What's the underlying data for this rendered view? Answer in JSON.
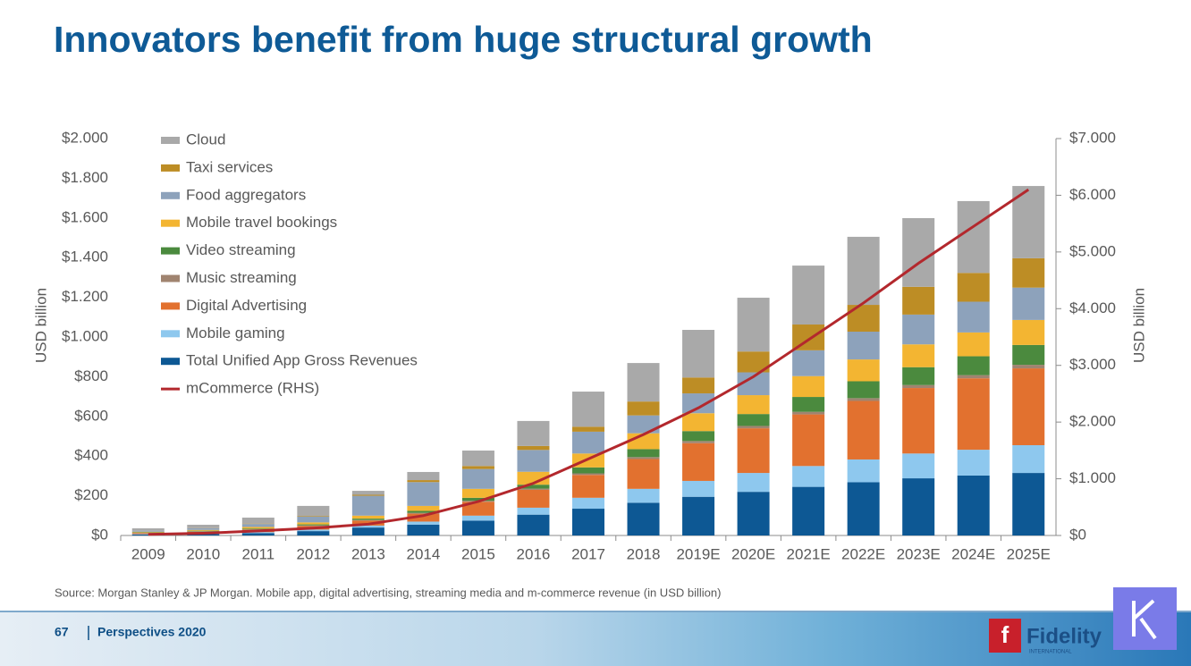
{
  "chart_data": {
    "type": "stacked_bar_line",
    "title": "Innovators benefit from huge structural growth",
    "ylabel": "USD billion",
    "y2label": "USD billion",
    "source": "Source: Morgan Stanley & JP Morgan. Mobile app, digital advertising, streaming media and m-commerce revenue (in USD billion)",
    "categories": [
      "2009",
      "2010",
      "2011",
      "2012",
      "2013",
      "2014",
      "2015",
      "2016",
      "2017",
      "2018",
      "2019E",
      "2020E",
      "2021E",
      "2022E",
      "2023E",
      "2024E",
      "2025E"
    ],
    "ylim": [
      0,
      2000
    ],
    "yticks": [
      {
        "value": 0,
        "label": "$0"
      },
      {
        "value": 200,
        "label": "$200"
      },
      {
        "value": 400,
        "label": "$400"
      },
      {
        "value": 600,
        "label": "$600"
      },
      {
        "value": 800,
        "label": "$800"
      },
      {
        "value": 1000,
        "label": "$1.000"
      },
      {
        "value": 1200,
        "label": "$1.200"
      },
      {
        "value": 1400,
        "label": "$1.400"
      },
      {
        "value": 1600,
        "label": "$1.600"
      },
      {
        "value": 1800,
        "label": "$1.800"
      },
      {
        "value": 2000,
        "label": "$2.000"
      }
    ],
    "y2lim": [
      0,
      7000
    ],
    "y2ticks": [
      {
        "value": 0,
        "label": "$0"
      },
      {
        "value": 1000,
        "label": "$1.000"
      },
      {
        "value": 2000,
        "label": "$2.000"
      },
      {
        "value": 3000,
        "label": "$3.000"
      },
      {
        "value": 4000,
        "label": "$4.000"
      },
      {
        "value": 5000,
        "label": "$5.000"
      },
      {
        "value": 6000,
        "label": "$6.000"
      },
      {
        "value": 7000,
        "label": "$7.000"
      }
    ],
    "series": [
      {
        "name": "Total Unified App Gross Revenues",
        "color": "#0d5894",
        "values": [
          5,
          8,
          12,
          22,
          40,
          55,
          75,
          105,
          135,
          165,
          195,
          220,
          245,
          268,
          288,
          302,
          315
        ]
      },
      {
        "name": "Mobile gaming",
        "color": "#8ec8ee",
        "values": [
          2,
          3,
          5,
          8,
          10,
          15,
          25,
          35,
          55,
          70,
          80,
          95,
          105,
          115,
          125,
          130,
          140
        ]
      },
      {
        "name": "Digital Advertising",
        "color": "#e2712f",
        "values": [
          5,
          8,
          12,
          18,
          25,
          40,
          70,
          90,
          115,
          150,
          190,
          225,
          260,
          295,
          330,
          360,
          387
        ]
      },
      {
        "name": "Music streaming",
        "color": "#a08470",
        "values": [
          2,
          2,
          2,
          3,
          3,
          4,
          5,
          6,
          8,
          10,
          11,
          12,
          13,
          14,
          15,
          16,
          18
        ]
      },
      {
        "name": "Video streaming",
        "color": "#4b8a3e",
        "values": [
          2,
          3,
          4,
          5,
          7,
          10,
          15,
          20,
          30,
          40,
          50,
          60,
          75,
          85,
          90,
          95,
          100
        ]
      },
      {
        "name": "Mobile travel bookings",
        "color": "#f3b532",
        "values": [
          3,
          4,
          8,
          10,
          15,
          25,
          45,
          65,
          70,
          80,
          90,
          95,
          105,
          110,
          115,
          120,
          126
        ]
      },
      {
        "name": "Food aggregators",
        "color": "#8da2bb",
        "values": [
          5,
          8,
          15,
          30,
          100,
          120,
          100,
          110,
          110,
          90,
          100,
          115,
          130,
          140,
          150,
          155,
          163
        ]
      },
      {
        "name": "Taxi services",
        "color": "#bd8d25",
        "values": [
          0,
          1,
          2,
          3,
          5,
          10,
          15,
          20,
          25,
          70,
          80,
          105,
          130,
          135,
          140,
          145,
          148
        ]
      },
      {
        "name": "Cloud",
        "color": "#a9a9a9",
        "values": [
          12,
          17,
          30,
          50,
          20,
          41,
          78,
          126,
          177,
          194,
          240,
          271,
          297,
          343,
          346,
          362,
          364
        ]
      },
      {
        "name": "mCommerce (RHS)",
        "color": "#b3282d",
        "axis": "y2",
        "values": [
          20,
          40,
          80,
          130,
          200,
          350,
          600,
          920,
          1350,
          1780,
          2250,
          2800,
          3450,
          4100,
          4800,
          5450,
          6100
        ]
      }
    ]
  },
  "footer": {
    "page": "67",
    "section": "Perspectives 2020",
    "brand": "Fidelity",
    "brand_sub": "INTERNATIONAL"
  }
}
